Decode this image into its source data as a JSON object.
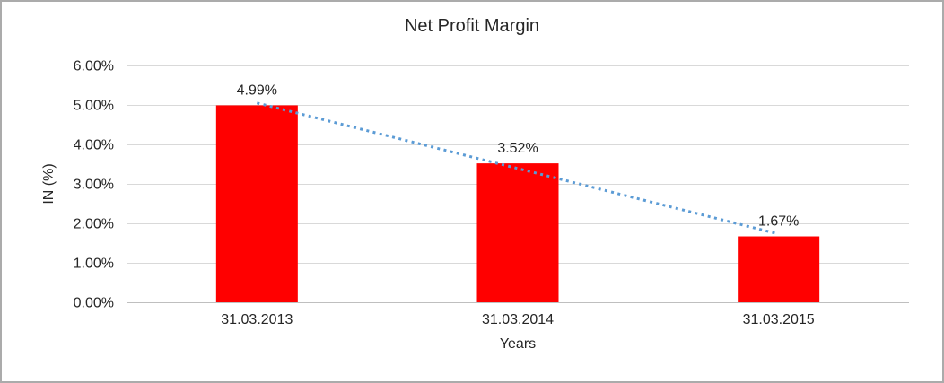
{
  "chart_data": {
    "type": "bar",
    "title": "Net Profit Margin",
    "xlabel": "Years",
    "ylabel": "IN (%)",
    "categories": [
      "31.03.2013",
      "31.03.2014",
      "31.03.2015"
    ],
    "values": [
      4.99,
      3.52,
      1.67
    ],
    "data_labels": [
      "4.99%",
      "3.52%",
      "1.67%"
    ],
    "ylim": [
      0,
      6
    ],
    "ytick_values": [
      0,
      1,
      2,
      3,
      4,
      5,
      6
    ],
    "ytick_labels": [
      "0.00%",
      "1.00%",
      "2.00%",
      "3.00%",
      "4.00%",
      "5.00%",
      "6.00%"
    ],
    "grid": true,
    "legend": "none",
    "bar_color": "#FF0000",
    "gridline_color": "#D9D9D9",
    "axis_line_color": "#BFBFBF",
    "text_color": "#262626",
    "trendline": {
      "type": "linear",
      "style": "dotted",
      "color": "#5B9BD5",
      "start_value": 5.05,
      "end_value": 1.73
    }
  }
}
